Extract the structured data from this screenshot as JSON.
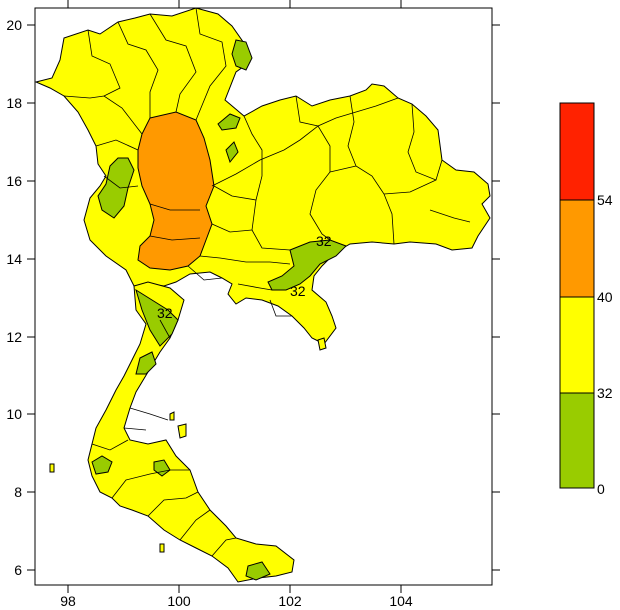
{
  "map": {
    "x_ticks": [
      "98",
      "100",
      "102",
      "104"
    ],
    "y_ticks": [
      "6",
      "8",
      "10",
      "12",
      "14",
      "16",
      "18",
      "20"
    ],
    "x_range": [
      97.4,
      105.6
    ],
    "y_range": [
      5.8,
      20.3
    ],
    "contour_labels": [
      "32",
      "32",
      "32"
    ]
  },
  "legend": {
    "levels": [
      {
        "label": "0",
        "color": "#99cc00"
      },
      {
        "label": "32",
        "color": "#ffff00"
      },
      {
        "label": "40",
        "color": "#ff9900"
      },
      {
        "label": "54",
        "color": "#ff2200"
      }
    ],
    "bands": [
      "#99cc00",
      "#ffff00",
      "#ff9900",
      "#ff2200"
    ]
  },
  "colors": {
    "land": "#ffff00",
    "low": "#99cc00",
    "mid": "#ff9900",
    "high": "#ff2200",
    "border": "#000000"
  }
}
